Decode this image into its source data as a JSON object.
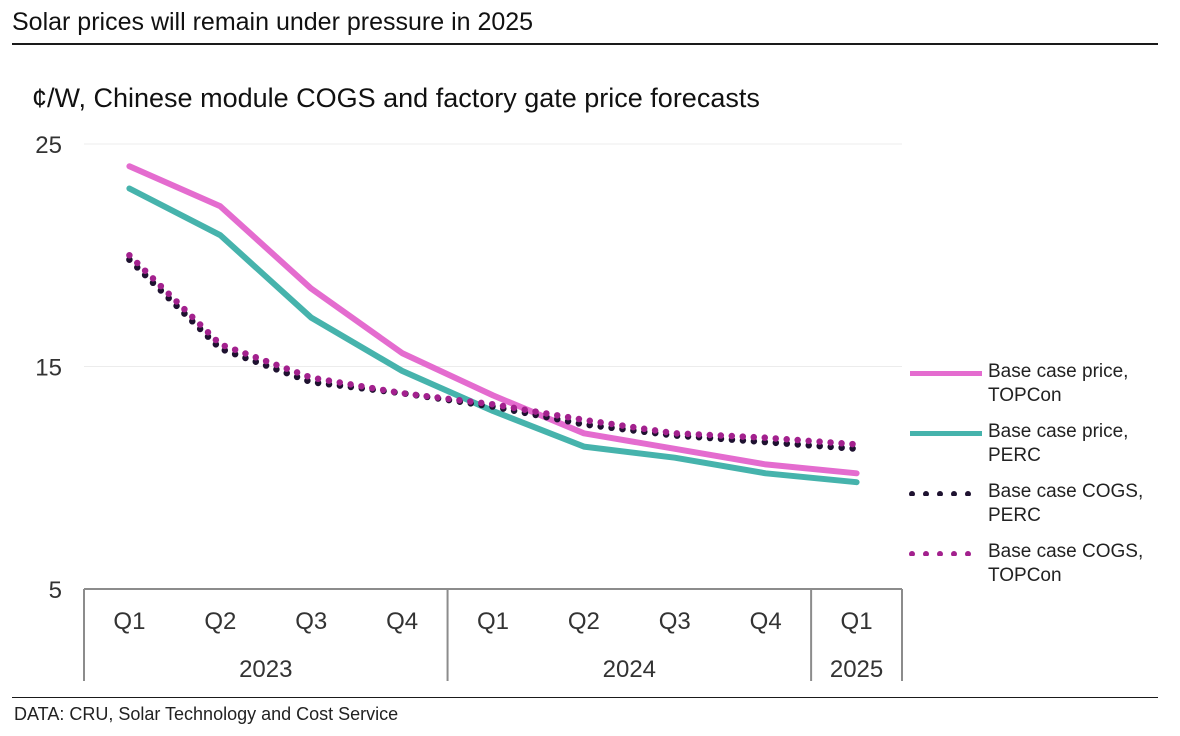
{
  "header": {
    "title": "Solar prices will remain under pressure in 2025",
    "subtitle": "¢/W, Chinese module COGS and factory gate price forecasts"
  },
  "footer": {
    "source": "DATA: CRU, Solar Technology and Cost Service"
  },
  "chart_data": {
    "type": "line",
    "title": "¢/W, Chinese module COGS and factory gate price forecasts",
    "xlabel": "",
    "ylabel": "",
    "ylim": [
      5,
      25
    ],
    "y_ticks": [
      5,
      15,
      25
    ],
    "grid": true,
    "legend_position": "right",
    "categories": [
      "Q1",
      "Q2",
      "Q3",
      "Q4",
      "Q1",
      "Q2",
      "Q3",
      "Q4",
      "Q1"
    ],
    "year_groups": [
      {
        "label": "2023",
        "count": 4
      },
      {
        "label": "2024",
        "count": 4
      },
      {
        "label": "2025",
        "count": 1
      }
    ],
    "series": [
      {
        "name": "Base case price, TOPCon",
        "style": "solid",
        "color": "#e46ccf",
        "values": [
          24.0,
          22.2,
          18.5,
          15.6,
          13.7,
          12.0,
          11.3,
          10.6,
          10.2
        ]
      },
      {
        "name": "Base case price, PERC",
        "style": "solid",
        "color": "#46b3ac",
        "values": [
          23.0,
          20.9,
          17.2,
          14.8,
          13.0,
          11.4,
          10.9,
          10.2,
          9.8
        ]
      },
      {
        "name": "Base case COGS, PERC",
        "style": "dotted",
        "color": "#1e1230",
        "values": [
          19.8,
          15.8,
          14.3,
          13.8,
          13.2,
          12.4,
          11.9,
          11.6,
          11.3
        ]
      },
      {
        "name": "Base case COGS, TOPCon",
        "style": "dotted",
        "color": "#a3218e",
        "values": [
          20.0,
          16.0,
          14.5,
          13.8,
          13.3,
          12.6,
          12.0,
          11.8,
          11.5
        ]
      }
    ]
  }
}
